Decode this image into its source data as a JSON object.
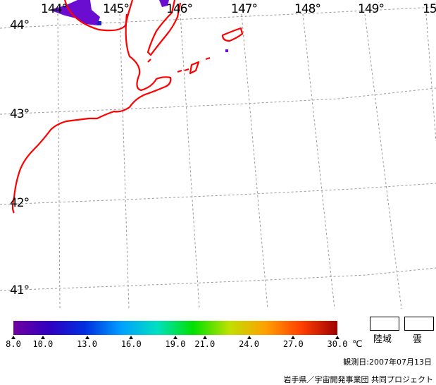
{
  "map": {
    "latitude_labels": [
      "44°",
      "43°",
      "42°",
      "41°"
    ],
    "longitude_labels": [
      "144°",
      "145°",
      "146°",
      "147°",
      "148°",
      "149°",
      "15"
    ],
    "coastline_color": "#ff0000",
    "graticule_color": "#999999",
    "low_value_patch_color": "#6a0dd0"
  },
  "colorbar": {
    "min": 8.0,
    "max": 30.0,
    "ticks": [
      "8.0",
      "10.0",
      "13.0",
      "16.0",
      "19.0",
      "21.0",
      "24.0",
      "27.0",
      "30.0"
    ],
    "tick_values": [
      8,
      10,
      13,
      16,
      19,
      21,
      24,
      27,
      30
    ],
    "unit": "℃",
    "gradient_colors": [
      "#7000a0",
      "#3000c0",
      "#0030e0",
      "#00a0ff",
      "#00e0c0",
      "#00e000",
      "#c0e000",
      "#ffa000",
      "#ff4000",
      "#a00000"
    ]
  },
  "legend": {
    "land_label": "陸域",
    "cloud_label": "雲"
  },
  "observation_date": "観測日:2007年07月13日",
  "credit": "岩手県／宇宙開発事業団 共同プロジェクト"
}
